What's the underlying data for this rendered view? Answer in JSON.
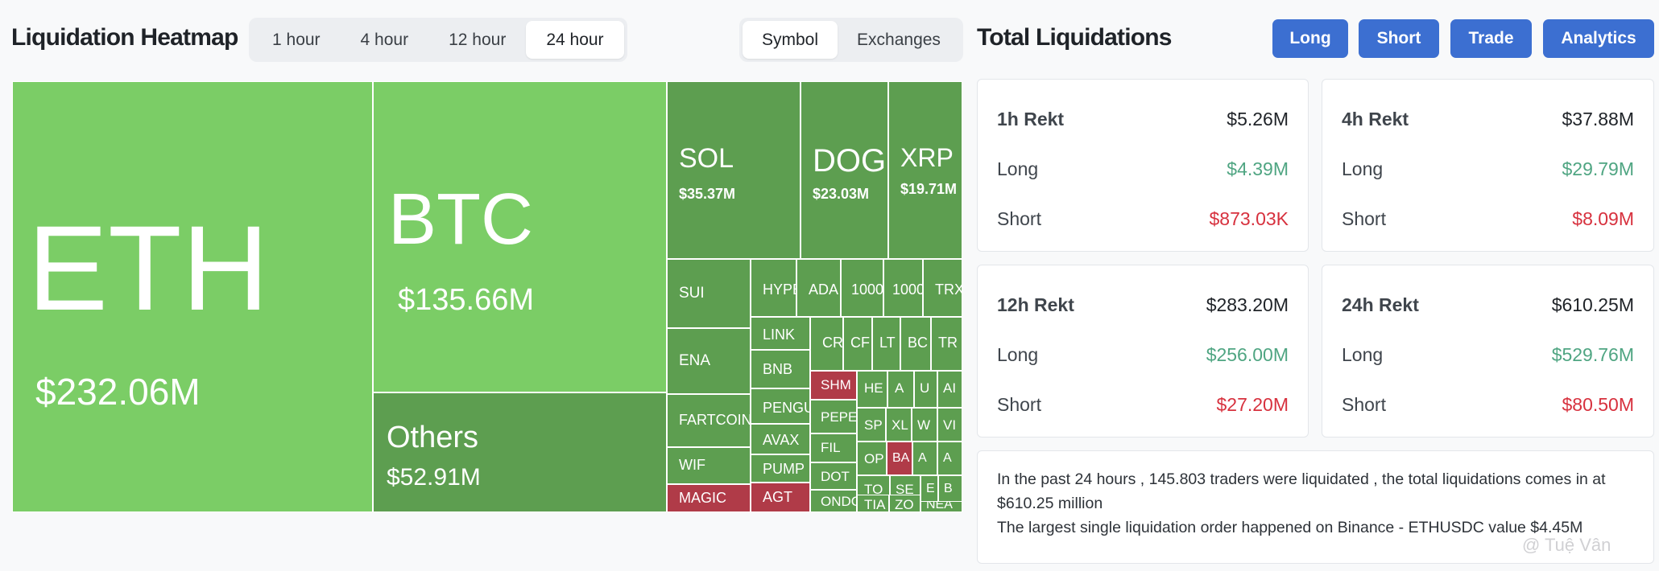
{
  "heatmap": {
    "title": "Liquidation Heatmap",
    "time_tabs": [
      "1 hour",
      "4 hour",
      "12 hour",
      "24 hour"
    ],
    "active_time_tab": "24 hour",
    "view_tabs": [
      "Symbol",
      "Exchanges"
    ],
    "active_view_tab": "Symbol",
    "colors": {
      "bright": "#7bcd66",
      "dark": "#5d9e50",
      "red": "#b03b48"
    },
    "cells": [
      {
        "symbol": "ETH",
        "value": "$232.06M",
        "tone": "bright"
      },
      {
        "symbol": "BTC",
        "value": "$135.66M",
        "tone": "bright"
      },
      {
        "symbol": "Others",
        "value": "$52.91M",
        "tone": "dark"
      },
      {
        "symbol": "SOL",
        "value": "$35.37M",
        "tone": "dark"
      },
      {
        "symbol": "DOGE",
        "value": "$23.03M",
        "tone": "dark"
      },
      {
        "symbol": "XRP",
        "value": "$19.71M",
        "tone": "dark"
      },
      {
        "symbol": "SUI",
        "value": "",
        "tone": "dark"
      },
      {
        "symbol": "HYPE",
        "value": "",
        "tone": "dark"
      },
      {
        "symbol": "ADA",
        "value": "",
        "tone": "dark"
      },
      {
        "symbol": "1000",
        "value": "",
        "tone": "dark"
      },
      {
        "symbol": "1000",
        "value": "",
        "tone": "dark"
      },
      {
        "symbol": "TRX",
        "value": "",
        "tone": "dark"
      },
      {
        "symbol": "ENA",
        "value": "",
        "tone": "dark"
      },
      {
        "symbol": "LINK",
        "value": "",
        "tone": "dark"
      },
      {
        "symbol": "CR",
        "value": "",
        "tone": "dark"
      },
      {
        "symbol": "CF",
        "value": "",
        "tone": "dark"
      },
      {
        "symbol": "LT",
        "value": "",
        "tone": "dark"
      },
      {
        "symbol": "BC",
        "value": "",
        "tone": "dark"
      },
      {
        "symbol": "TR",
        "value": "",
        "tone": "dark"
      },
      {
        "symbol": "BNB",
        "value": "",
        "tone": "dark"
      },
      {
        "symbol": "SHM",
        "value": "",
        "tone": "red"
      },
      {
        "symbol": "HE",
        "value": "",
        "tone": "dark"
      },
      {
        "symbol": "A",
        "value": "",
        "tone": "dark"
      },
      {
        "symbol": "U",
        "value": "",
        "tone": "dark"
      },
      {
        "symbol": "AI",
        "value": "",
        "tone": "dark"
      },
      {
        "symbol": "FARTCOIN",
        "value": "",
        "tone": "dark"
      },
      {
        "symbol": "PENGU",
        "value": "",
        "tone": "dark"
      },
      {
        "symbol": "PEPE",
        "value": "",
        "tone": "dark"
      },
      {
        "symbol": "SP",
        "value": "",
        "tone": "dark"
      },
      {
        "symbol": "XL",
        "value": "",
        "tone": "dark"
      },
      {
        "symbol": "W",
        "value": "",
        "tone": "dark"
      },
      {
        "symbol": "VI",
        "value": "",
        "tone": "dark"
      },
      {
        "symbol": "AVAX",
        "value": "",
        "tone": "dark"
      },
      {
        "symbol": "FIL",
        "value": "",
        "tone": "dark"
      },
      {
        "symbol": "WIF",
        "value": "",
        "tone": "dark"
      },
      {
        "symbol": "OP",
        "value": "",
        "tone": "dark"
      },
      {
        "symbol": "BA",
        "value": "",
        "tone": "red"
      },
      {
        "symbol": "A",
        "value": "",
        "tone": "dark"
      },
      {
        "symbol": "A",
        "value": "",
        "tone": "dark"
      },
      {
        "symbol": "PUMP",
        "value": "",
        "tone": "dark"
      },
      {
        "symbol": "DOT",
        "value": "",
        "tone": "dark"
      },
      {
        "symbol": "TO",
        "value": "",
        "tone": "dark"
      },
      {
        "symbol": "SE",
        "value": "",
        "tone": "dark"
      },
      {
        "symbol": "E",
        "value": "",
        "tone": "dark"
      },
      {
        "symbol": "B",
        "value": "",
        "tone": "dark"
      },
      {
        "symbol": "MAGIC",
        "value": "",
        "tone": "red"
      },
      {
        "symbol": "AGT",
        "value": "",
        "tone": "red"
      },
      {
        "symbol": "ONDO",
        "value": "",
        "tone": "dark"
      },
      {
        "symbol": "TIA",
        "value": "",
        "tone": "dark"
      },
      {
        "symbol": "ZO",
        "value": "",
        "tone": "dark"
      },
      {
        "symbol": "NEA",
        "value": "",
        "tone": "dark"
      }
    ]
  },
  "totals": {
    "title": "Total Liquidations",
    "buttons": [
      "Long",
      "Short",
      "Trade",
      "Analytics"
    ],
    "cards": [
      {
        "label": "1h Rekt",
        "total": "$5.26M",
        "long_label": "Long",
        "long": "$4.39M",
        "short_label": "Short",
        "short": "$873.03K"
      },
      {
        "label": "4h Rekt",
        "total": "$37.88M",
        "long_label": "Long",
        "long": "$29.79M",
        "short_label": "Short",
        "short": "$8.09M"
      },
      {
        "label": "12h Rekt",
        "total": "$283.20M",
        "long_label": "Long",
        "long": "$256.00M",
        "short_label": "Short",
        "short": "$27.20M"
      },
      {
        "label": "24h Rekt",
        "total": "$610.25M",
        "long_label": "Long",
        "long": "$529.76M",
        "short_label": "Short",
        "short": "$80.50M"
      }
    ],
    "summary_line1": "In the past 24 hours , 145.803 traders were liquidated , the total liquidations comes in at $610.25 million",
    "summary_line2": "The largest single liquidation order happened on Binance - ETHUSDC value $4.45M",
    "accent_color": "#3c6fd1",
    "long_color": "#4fa582",
    "short_color": "#d7313e"
  },
  "watermark": "@ Tuệ Vân"
}
